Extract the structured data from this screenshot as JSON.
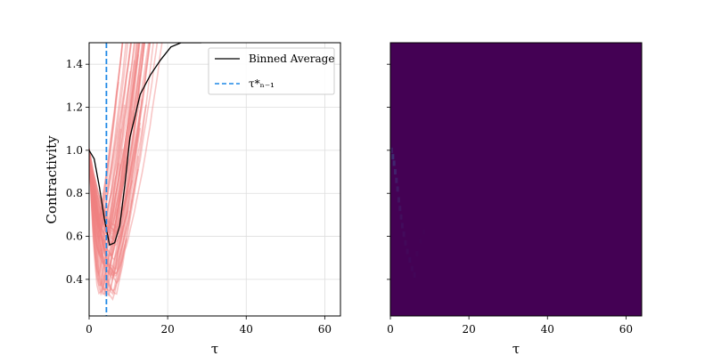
{
  "chart_data": [
    {
      "type": "line",
      "xlabel": "τ",
      "ylabel": "Contractivity",
      "xlim": [
        0,
        64
      ],
      "ylim": [
        0.23,
        1.5
      ],
      "xticks": [
        "0",
        "20",
        "40",
        "60"
      ],
      "yticks": [
        "0.4",
        "0.6",
        "0.8",
        "1.0",
        "1.2",
        "1.4"
      ],
      "grid": true,
      "legend_position": "top-right",
      "series": [
        {
          "name": "Binned Average",
          "color": "#000000",
          "x": [
            0,
            1.3,
            2.6,
            3.9,
            5.2,
            6.5,
            7.8,
            9.1,
            10.4,
            11.7,
            13,
            15.6,
            18.2,
            20.8,
            23.4,
            26,
            28.6
          ],
          "y": [
            1.0,
            0.96,
            0.83,
            0.68,
            0.56,
            0.57,
            0.65,
            0.84,
            1.06,
            1.16,
            1.26,
            1.35,
            1.42,
            1.48,
            1.5,
            1.5,
            1.5
          ]
        },
        {
          "name": "τ*ₙ₋₁",
          "color": "#1e88e5",
          "style": "dashed",
          "x": [
            4.4,
            4.4
          ],
          "y": [
            0.23,
            1.5
          ]
        }
      ],
      "background_trajectories": {
        "color": "#f08080",
        "count": 60,
        "x_range": [
          0,
          25
        ],
        "min_y_range": [
          0.3,
          0.7
        ]
      }
    },
    {
      "type": "heatmap",
      "xlabel": "τ",
      "xlim": [
        0,
        64
      ],
      "ylim": [
        0.23,
        1.5
      ],
      "xticks": [
        "0",
        "20",
        "40",
        "60"
      ],
      "background_color": "#440154",
      "highlight_color": "#3b528b"
    }
  ]
}
